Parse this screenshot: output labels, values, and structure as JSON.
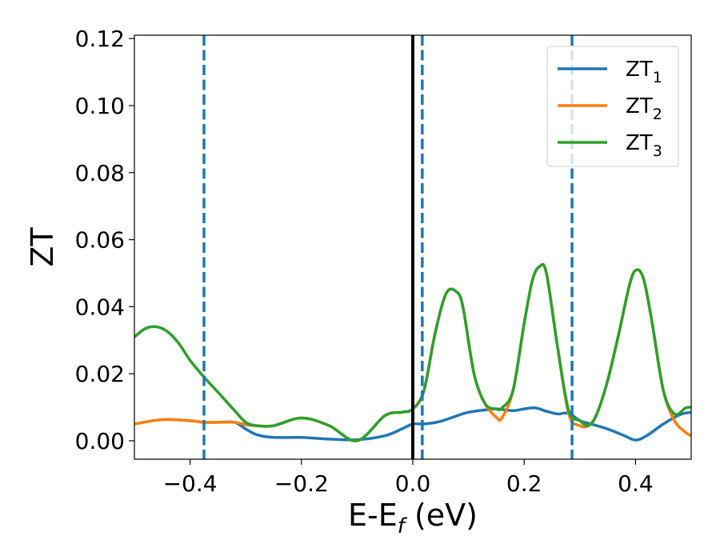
{
  "chart_data": {
    "type": "line",
    "xlabel": {
      "main": "E-E",
      "sub": "f",
      "suffix": " (eV)"
    },
    "ylabel": "ZT",
    "xlim": [
      -0.5,
      0.5
    ],
    "ylim": [
      -0.0055,
      0.121
    ],
    "xticks": [
      -0.4,
      -0.2,
      0.0,
      0.2,
      0.4
    ],
    "xtick_labels": [
      "−0.4",
      "−0.2",
      "0.0",
      "0.2",
      "0.4"
    ],
    "yticks": [
      0.0,
      0.02,
      0.04,
      0.06,
      0.08,
      0.1,
      0.12
    ],
    "ytick_labels": [
      "0.00",
      "0.02",
      "0.04",
      "0.06",
      "0.08",
      "0.10",
      "0.12"
    ],
    "grid": false,
    "legend_position": "top-right",
    "vertical_lines": [
      {
        "x": -0.375,
        "style": "dashed",
        "color": "#1f77b4"
      },
      {
        "x": 0.0,
        "style": "solid",
        "color": "#000000"
      },
      {
        "x": 0.017,
        "style": "dashed",
        "color": "#1f77b4"
      },
      {
        "x": 0.286,
        "style": "dashed",
        "color": "#1f77b4"
      }
    ],
    "series": [
      {
        "name": "ZT",
        "sub": "1",
        "color": "#1f77b4",
        "x": [
          -0.5,
          -0.45,
          -0.4,
          -0.375,
          -0.35,
          -0.32,
          -0.3,
          -0.28,
          -0.25,
          -0.2,
          -0.15,
          -0.1,
          -0.05,
          -0.02,
          0.0,
          0.02,
          0.05,
          0.08,
          0.1,
          0.13,
          0.15,
          0.18,
          0.2,
          0.22,
          0.24,
          0.26,
          0.28,
          0.3,
          0.32,
          0.35,
          0.38,
          0.4,
          0.42,
          0.45,
          0.48,
          0.5
        ],
        "y": [
          0.005,
          0.0063,
          0.006,
          0.0055,
          0.0055,
          0.0055,
          0.0035,
          0.0018,
          0.001,
          0.001,
          0.0005,
          0.0003,
          0.0015,
          0.0035,
          0.005,
          0.005,
          0.0058,
          0.0075,
          0.0085,
          0.0092,
          0.0095,
          0.009,
          0.0095,
          0.0098,
          0.0088,
          0.008,
          0.0082,
          0.006,
          0.005,
          0.0035,
          0.0015,
          0.0002,
          0.0015,
          0.005,
          0.0078,
          0.0085
        ]
      },
      {
        "name": "ZT",
        "sub": "2",
        "color": "#ff7f0e",
        "x": [
          -0.5,
          -0.45,
          -0.4,
          -0.375,
          -0.35,
          -0.32,
          -0.3,
          -0.28,
          -0.25,
          -0.2,
          -0.15,
          -0.1,
          -0.05,
          -0.02,
          0.0,
          0.02,
          0.04,
          0.06,
          0.078,
          0.09,
          0.11,
          0.13,
          0.15,
          0.16,
          0.18,
          0.2,
          0.215,
          0.228,
          0.24,
          0.26,
          0.28,
          0.3,
          0.315,
          0.33,
          0.35,
          0.37,
          0.39,
          0.402,
          0.415,
          0.43,
          0.45,
          0.47,
          0.49,
          0.5
        ],
        "y": [
          0.005,
          0.0063,
          0.006,
          0.0055,
          0.0055,
          0.0055,
          0.0048,
          0.0045,
          0.0045,
          0.0068,
          0.0045,
          0.0,
          0.0075,
          0.0085,
          0.0095,
          0.015,
          0.032,
          0.044,
          0.0445,
          0.04,
          0.02,
          0.011,
          0.007,
          0.0068,
          0.015,
          0.035,
          0.048,
          0.052,
          0.05,
          0.028,
          0.008,
          0.0045,
          0.0045,
          0.0078,
          0.018,
          0.032,
          0.047,
          0.051,
          0.048,
          0.035,
          0.015,
          0.006,
          0.0025,
          0.0015
        ]
      },
      {
        "name": "ZT",
        "sub": "3",
        "color": "#2ca02c",
        "x": [
          -0.5,
          -0.48,
          -0.46,
          -0.44,
          -0.42,
          -0.4,
          -0.375,
          -0.35,
          -0.32,
          -0.3,
          -0.28,
          -0.25,
          -0.2,
          -0.15,
          -0.1,
          -0.05,
          -0.02,
          0.0,
          0.02,
          0.04,
          0.06,
          0.078,
          0.09,
          0.11,
          0.13,
          0.15,
          0.16,
          0.18,
          0.2,
          0.215,
          0.228,
          0.24,
          0.26,
          0.28,
          0.3,
          0.315,
          0.33,
          0.35,
          0.37,
          0.39,
          0.402,
          0.415,
          0.43,
          0.45,
          0.47,
          0.49,
          0.5
        ],
        "y": [
          0.031,
          0.0335,
          0.034,
          0.0325,
          0.029,
          0.024,
          0.019,
          0.0145,
          0.009,
          0.0055,
          0.0045,
          0.0045,
          0.0068,
          0.0045,
          0.0,
          0.0075,
          0.0085,
          0.0095,
          0.015,
          0.032,
          0.044,
          0.0445,
          0.04,
          0.02,
          0.011,
          0.0095,
          0.0098,
          0.015,
          0.035,
          0.048,
          0.052,
          0.05,
          0.028,
          0.009,
          0.006,
          0.0045,
          0.0078,
          0.018,
          0.032,
          0.047,
          0.051,
          0.048,
          0.035,
          0.015,
          0.008,
          0.0098,
          0.01
        ]
      }
    ]
  }
}
